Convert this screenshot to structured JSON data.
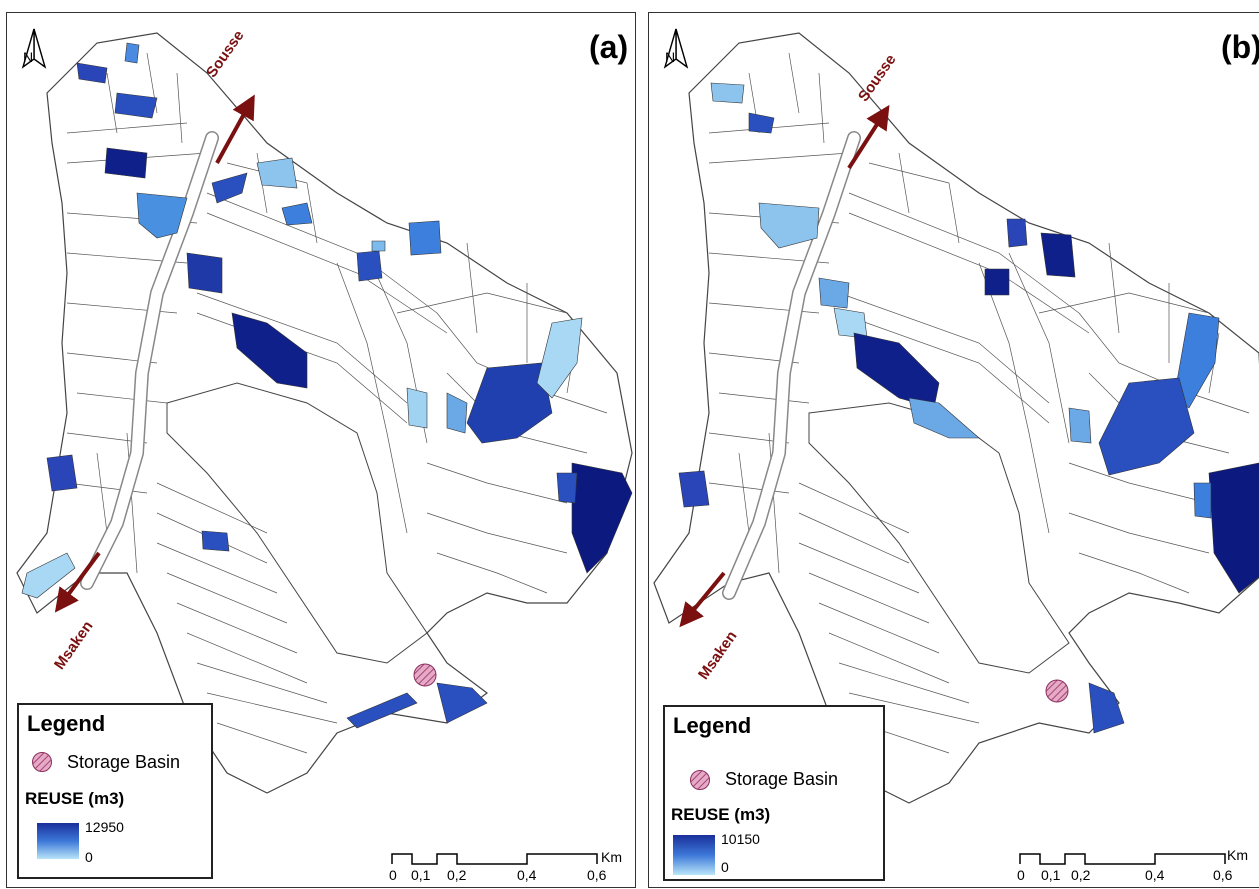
{
  "panels": [
    {
      "letter": "(a)",
      "north_label": "N",
      "road_north": "Sousse",
      "road_south": "Msaken",
      "legend": {
        "title": "Legend",
        "basin_label": "Storage Basin",
        "reuse_title": "REUSE (m3)",
        "max": "12950",
        "min": "0"
      },
      "scale": {
        "ticks": [
          "0",
          "0,1",
          "0,2",
          "0,4",
          "0,6"
        ],
        "unit": "Km"
      }
    },
    {
      "letter": "(b)",
      "north_label": "N",
      "road_north": "Sousse",
      "road_south": "Msaken",
      "legend": {
        "title": "Legend",
        "basin_label": "Storage Basin",
        "reuse_title": "REUSE (m3)",
        "max": "10150",
        "min": "0"
      },
      "scale": {
        "ticks": [
          "0",
          "0,1",
          "0,2",
          "0,4",
          "0,6"
        ],
        "unit": "Km"
      }
    }
  ],
  "colors": {
    "road_arrow": "#7a1010",
    "ramp_high": "#1a2f9a",
    "ramp_mid": "#3d78d8",
    "ramp_low": "#b8e4f8",
    "basin_fill": "#e7a9c6",
    "basin_hatch": "#8a2f5f"
  }
}
